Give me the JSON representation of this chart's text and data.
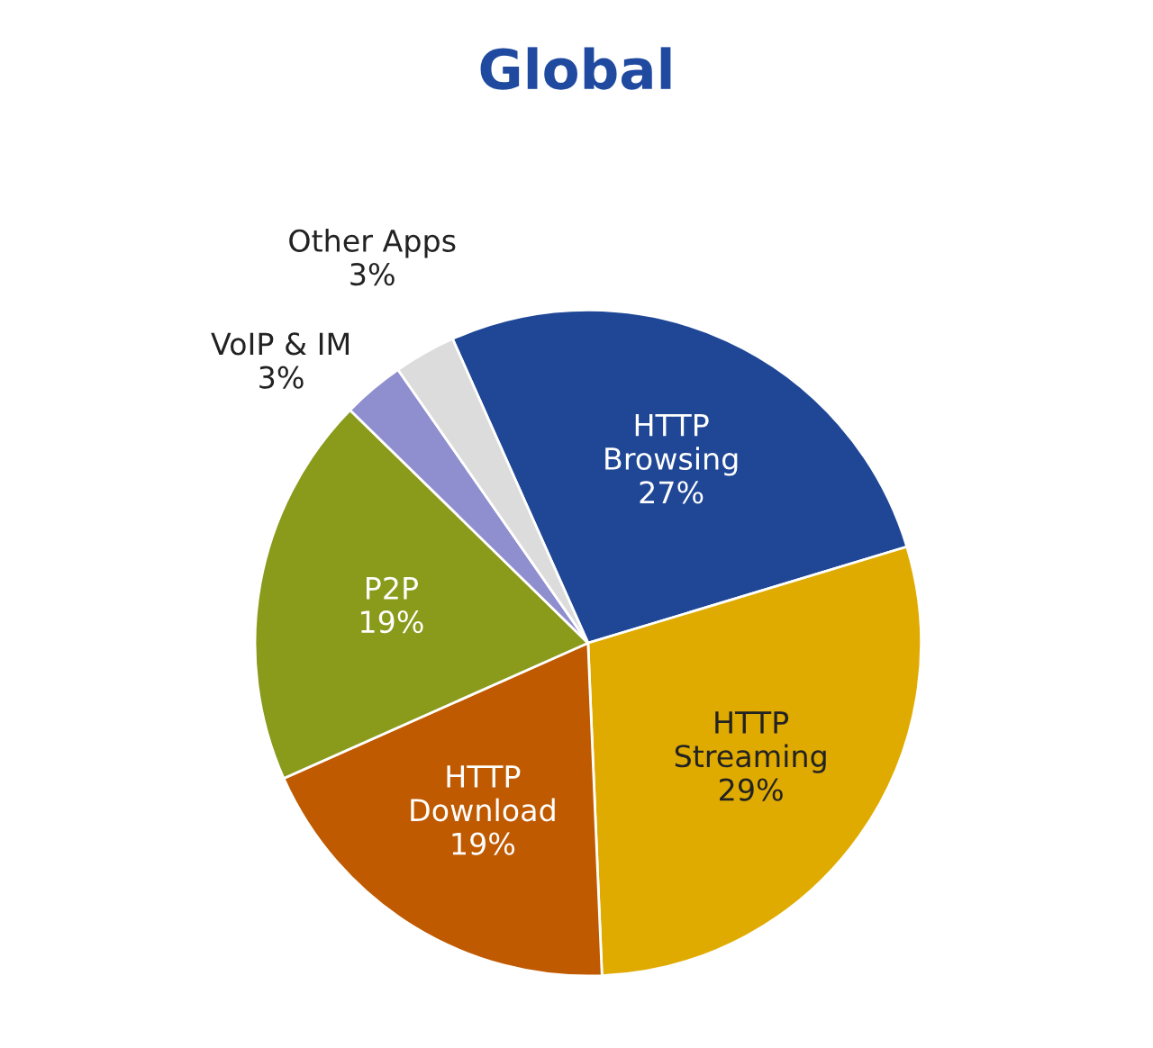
{
  "chart_data": {
    "type": "pie",
    "title": "Global",
    "categories": [
      "HTTP Browsing",
      "HTTP Streaming",
      "HTTP Download",
      "P2P",
      "VoIP & IM",
      "Other Apps"
    ],
    "values": [
      27,
      29,
      19,
      19,
      3,
      3
    ],
    "value_labels": [
      "27%",
      "29%",
      "19%",
      "19%",
      "3%",
      "3%"
    ],
    "colors": [
      "#1f4796",
      "#e0ab00",
      "#c05a00",
      "#8a9a1a",
      "#8f8fcf",
      "#dcdcdc"
    ]
  }
}
